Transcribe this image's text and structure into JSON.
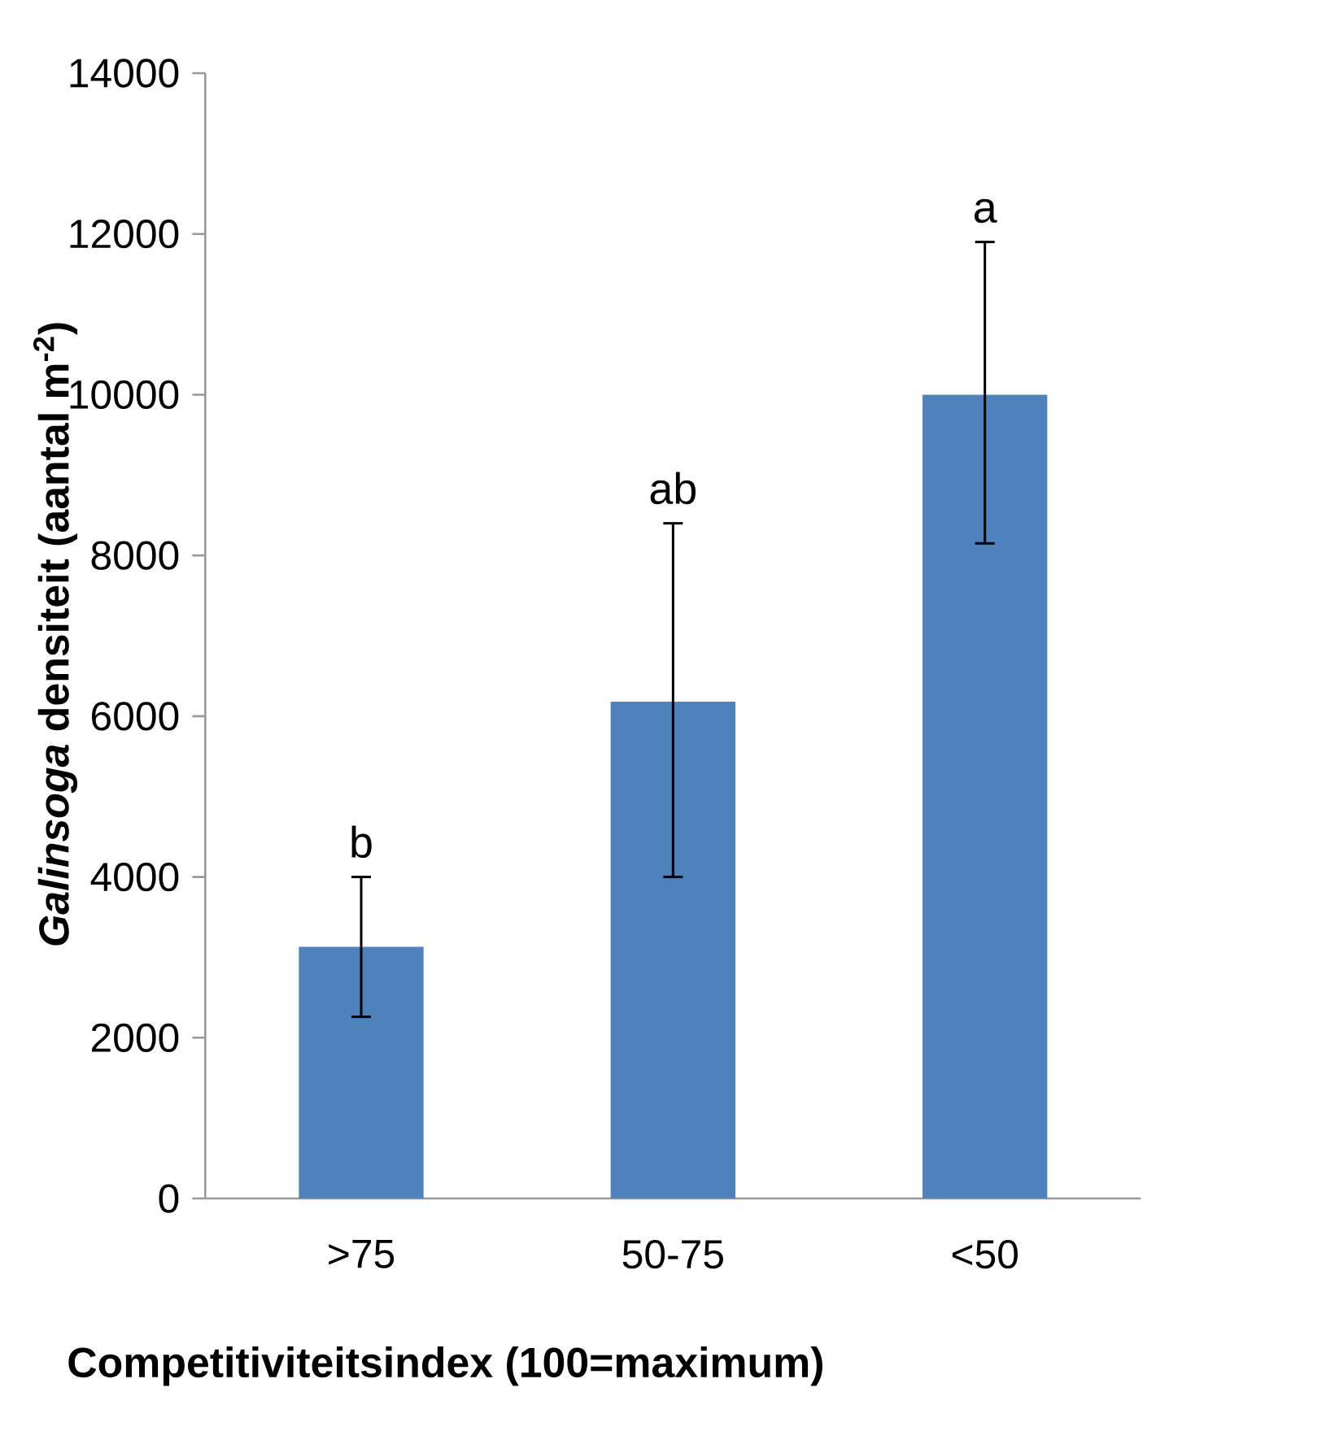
{
  "chart_data": {
    "type": "bar",
    "categories": [
      ">75",
      "50-75",
      "<50"
    ],
    "values": [
      3130,
      6180,
      10000
    ],
    "errors": [
      [
        2260,
        4000
      ],
      [
        4000,
        8400
      ],
      [
        8150,
        11900
      ]
    ],
    "color": "#4f81bd",
    "xlabel": "Competitiviteitsindex (100=maximum)",
    "ylabel": "*Galinsoga* densiteit (aantal m$^{-2}$)",
    "ylim": [
      0,
      14000
    ],
    "yticks": [
      0,
      2000,
      4000,
      6000,
      8000,
      10000,
      12000,
      14000
    ],
    "grid": false,
    "annotations": [
      "b",
      "ab",
      "a"
    ]
  }
}
